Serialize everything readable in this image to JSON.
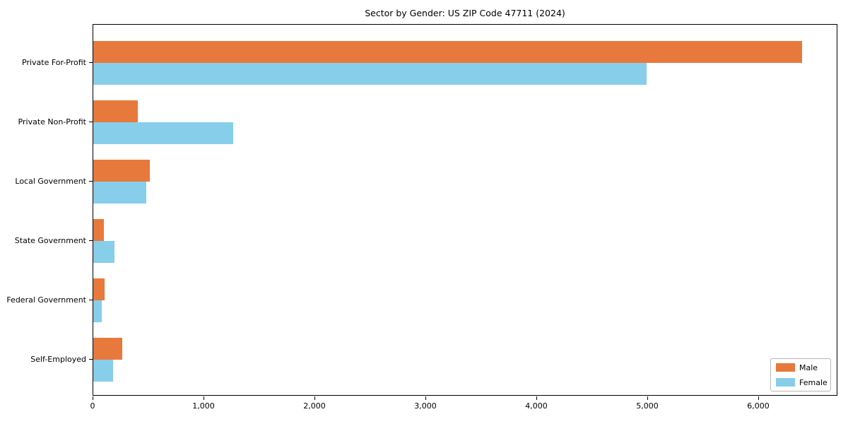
{
  "chart_data": {
    "type": "bar",
    "orientation": "horizontal",
    "title": "Sector by Gender: US ZIP Code 47711 (2024)",
    "categories": [
      "Private For-Profit",
      "Private Non-Profit",
      "Local Government",
      "State Government",
      "Federal Government",
      "Self-Employed"
    ],
    "series": [
      {
        "name": "Male",
        "color": "#E8793C",
        "values": [
          6390,
          400,
          510,
          95,
          100,
          260
        ]
      },
      {
        "name": "Female",
        "color": "#87CEEB",
        "values": [
          4990,
          1260,
          480,
          190,
          75,
          180
        ]
      }
    ],
    "xlabel": "",
    "ylabel": "",
    "xlim": [
      0,
      6713
    ],
    "xticks": [
      {
        "value": 0,
        "label": "0"
      },
      {
        "value": 1000,
        "label": "1,000"
      },
      {
        "value": 2000,
        "label": "2,000"
      },
      {
        "value": 3000,
        "label": "3,000"
      },
      {
        "value": 4000,
        "label": "4,000"
      },
      {
        "value": 5000,
        "label": "5,000"
      },
      {
        "value": 6000,
        "label": "6,000"
      }
    ],
    "grid": false,
    "legend_position": "lower right"
  }
}
